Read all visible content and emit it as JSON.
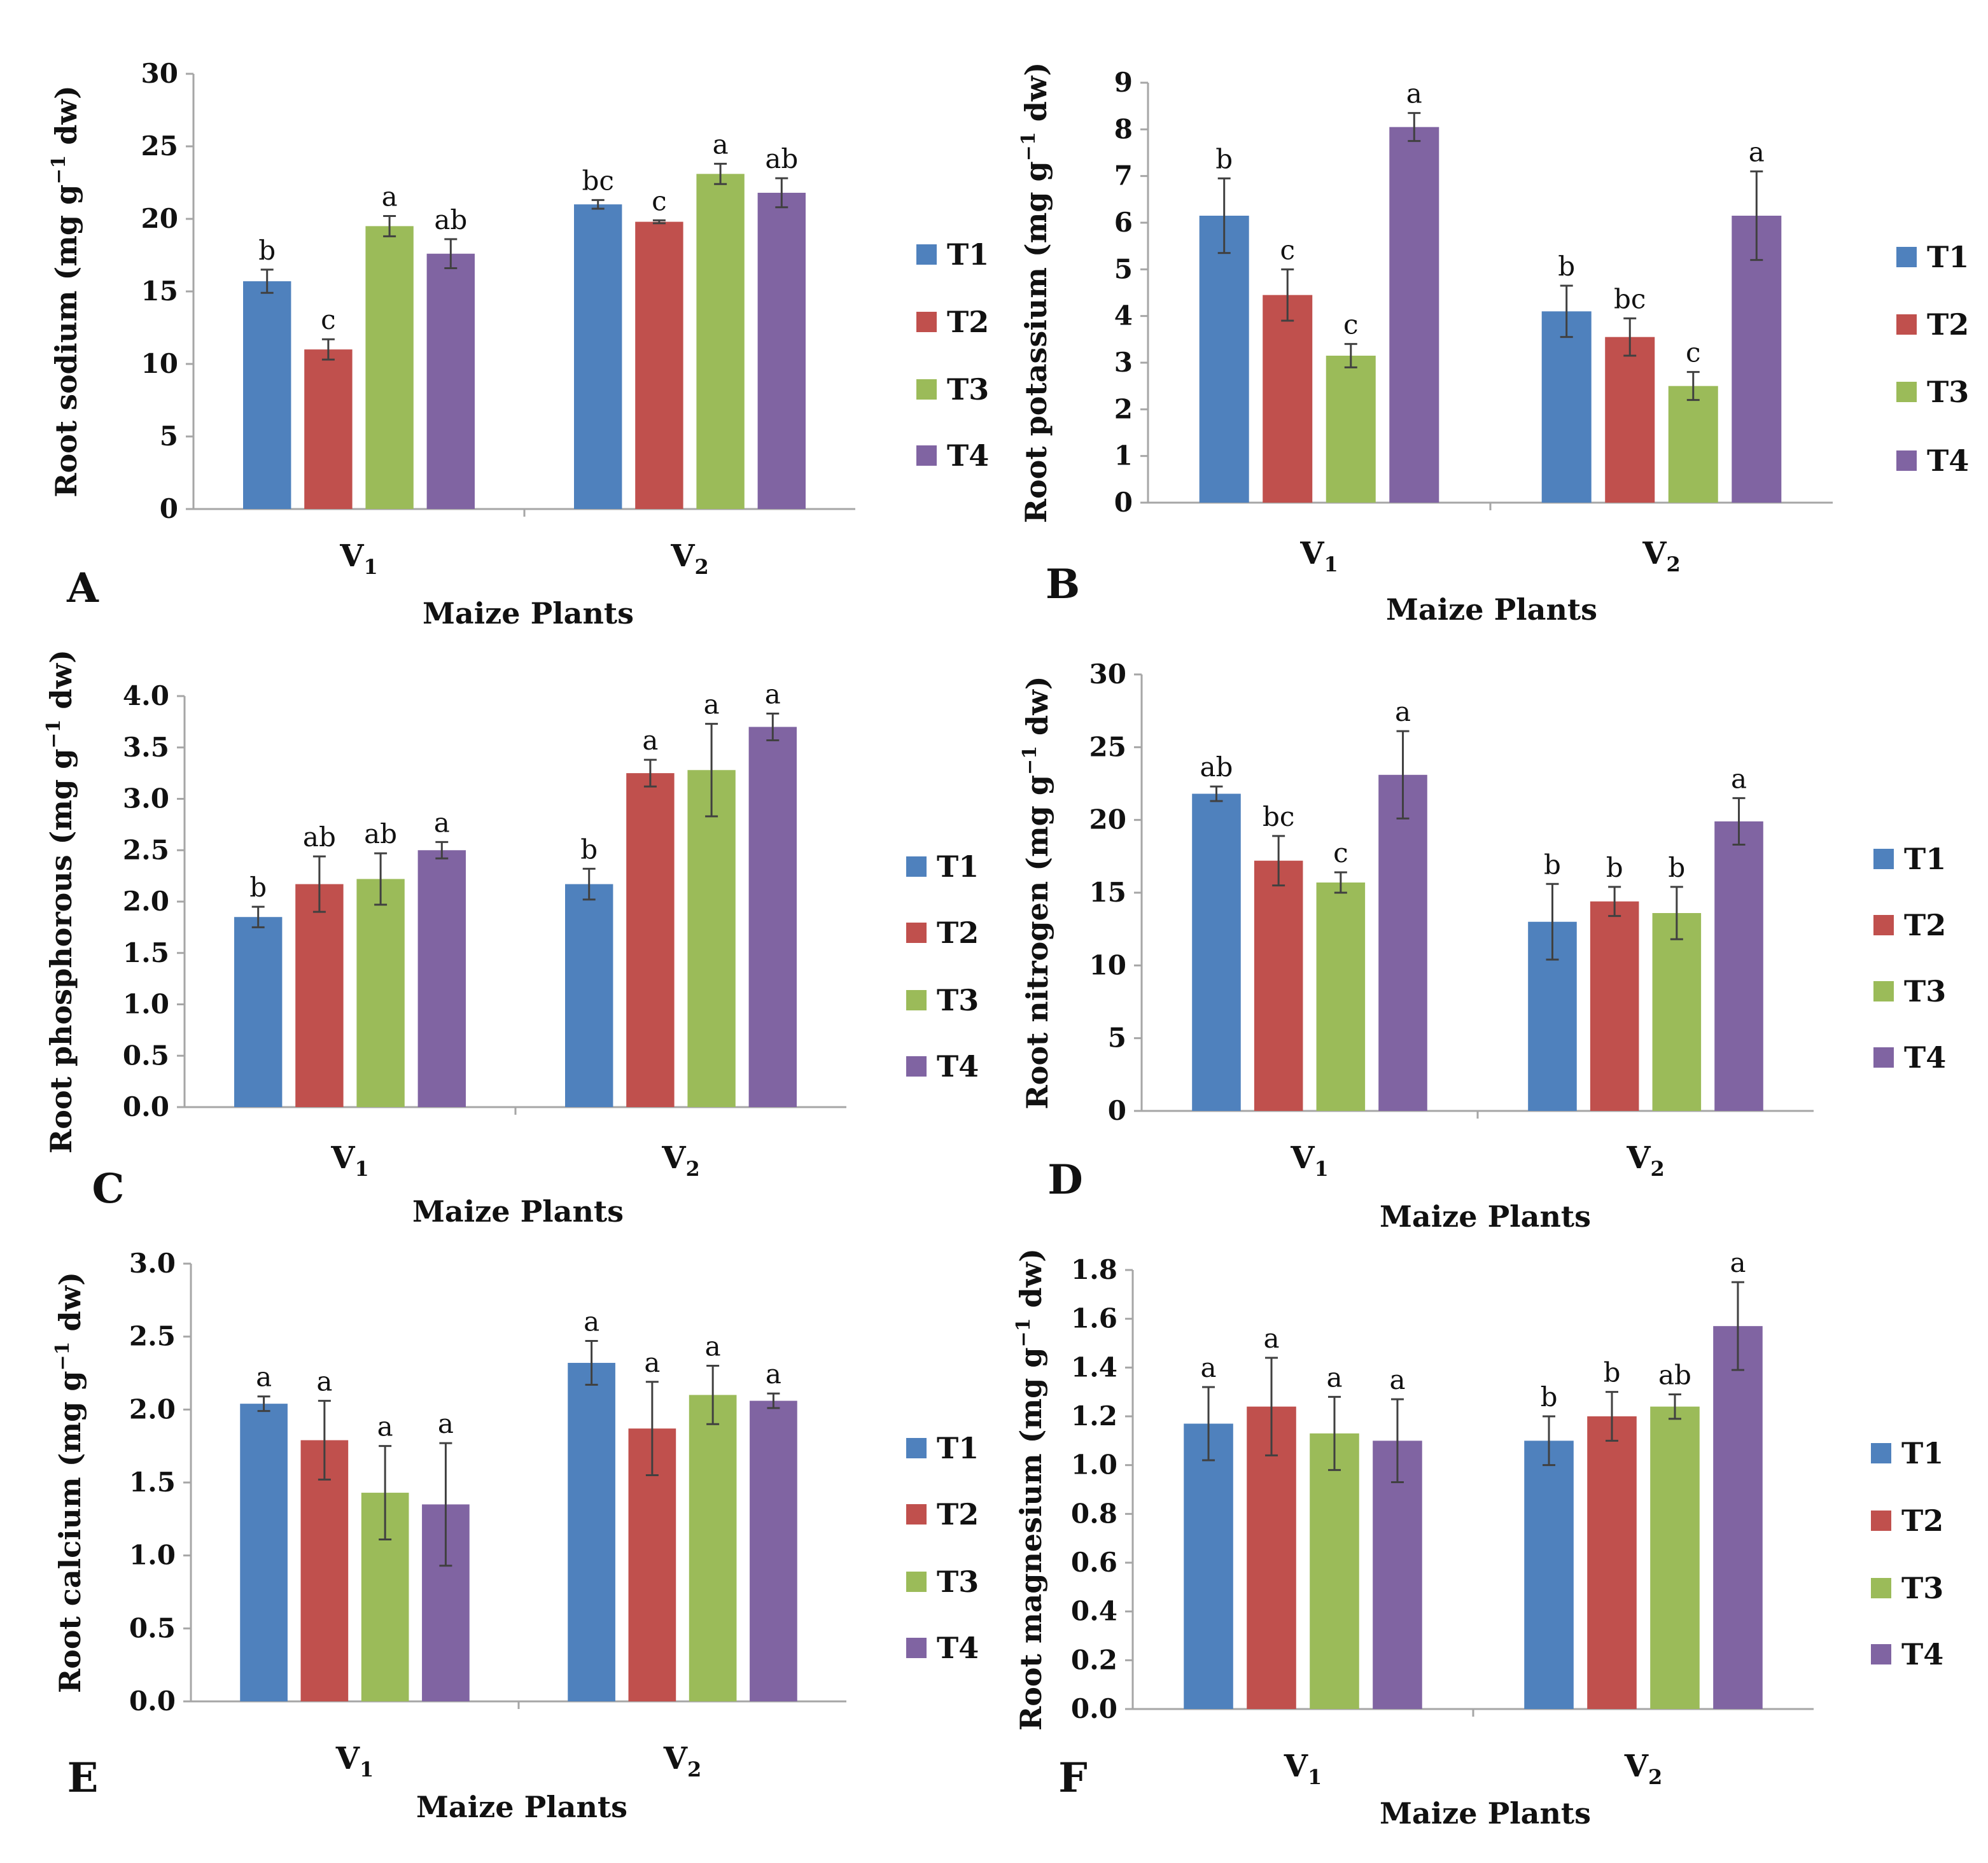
{
  "colors": {
    "T1": "#4F81BD",
    "T2": "#C0504D",
    "T3": "#9BBB59",
    "T4": "#8064A2",
    "axis": "#A6A6A6",
    "error": "#404040"
  },
  "chart_data": [
    {
      "panel": "A",
      "type": "bar",
      "ylabel_prefix": "Root sodium (mg g",
      "ylabel_sup": "−1",
      "ylabel_suffix": " dw)",
      "xlabel": "Maize Plants",
      "categories": [
        "V1",
        "V2"
      ],
      "ylim": [
        0,
        30
      ],
      "yticks": [
        "0",
        "5",
        "10",
        "15",
        "20",
        "25",
        "30"
      ],
      "legend": [
        "T1",
        "T2",
        "T3",
        "T4"
      ],
      "legend_position": "right",
      "series": [
        {
          "name": "T1",
          "values": [
            15.7,
            21.0
          ],
          "errors": [
            0.8,
            0.3
          ],
          "letters": [
            "b",
            "bc"
          ]
        },
        {
          "name": "T2",
          "values": [
            11.0,
            19.8
          ],
          "errors": [
            0.7,
            0.1
          ],
          "letters": [
            "c",
            "c"
          ]
        },
        {
          "name": "T3",
          "values": [
            19.5,
            23.1
          ],
          "errors": [
            0.7,
            0.7
          ],
          "letters": [
            "a",
            "a"
          ]
        },
        {
          "name": "T4",
          "values": [
            17.6,
            21.8
          ],
          "errors": [
            1.0,
            1.0
          ],
          "letters": [
            "ab",
            "ab"
          ]
        }
      ]
    },
    {
      "panel": "B",
      "type": "bar",
      "ylabel_prefix": "Root potassium (mg g",
      "ylabel_sup": "−1",
      "ylabel_suffix": " dw)",
      "xlabel": "Maize Plants",
      "categories": [
        "V1",
        "V2"
      ],
      "ylim": [
        0,
        9
      ],
      "yticks": [
        "0",
        "1",
        "2",
        "3",
        "4",
        "5",
        "6",
        "7",
        "8",
        "9"
      ],
      "legend": [
        "T1",
        "T2",
        "T3",
        "T4"
      ],
      "legend_position": "right",
      "series": [
        {
          "name": "T1",
          "values": [
            6.15,
            4.1
          ],
          "errors": [
            0.8,
            0.55
          ],
          "letters": [
            "b",
            "b"
          ]
        },
        {
          "name": "T2",
          "values": [
            4.45,
            3.55
          ],
          "errors": [
            0.55,
            0.4
          ],
          "letters": [
            "c",
            "bc"
          ]
        },
        {
          "name": "T3",
          "values": [
            3.15,
            2.5
          ],
          "errors": [
            0.25,
            0.3
          ],
          "letters": [
            "c",
            "c"
          ]
        },
        {
          "name": "T4",
          "values": [
            8.05,
            6.15
          ],
          "errors": [
            0.3,
            0.95
          ],
          "letters": [
            "a",
            "a"
          ]
        }
      ]
    },
    {
      "panel": "C",
      "type": "bar",
      "ylabel_prefix": "Root phosphorous (mg g",
      "ylabel_sup": "−1",
      "ylabel_suffix": " dw)",
      "xlabel": "Maize Plants",
      "categories": [
        "V1",
        "V2"
      ],
      "ylim": [
        0,
        4
      ],
      "yticks": [
        "0.0",
        "0.5",
        "1.0",
        "1.5",
        "2.0",
        "2.5",
        "3.0",
        "3.5",
        "4.0"
      ],
      "legend": [
        "T1",
        "T2",
        "T3",
        "T4"
      ],
      "legend_position": "right",
      "series": [
        {
          "name": "T1",
          "values": [
            1.85,
            2.17
          ],
          "errors": [
            0.1,
            0.15
          ],
          "letters": [
            "b",
            "b"
          ]
        },
        {
          "name": "T2",
          "values": [
            2.17,
            3.25
          ],
          "errors": [
            0.27,
            0.13
          ],
          "letters": [
            "ab",
            "a"
          ]
        },
        {
          "name": "T3",
          "values": [
            2.22,
            3.28
          ],
          "errors": [
            0.25,
            0.45
          ],
          "letters": [
            "ab",
            "a"
          ]
        },
        {
          "name": "T4",
          "values": [
            2.5,
            3.7
          ],
          "errors": [
            0.08,
            0.13
          ],
          "letters": [
            "a",
            "a"
          ]
        }
      ]
    },
    {
      "panel": "D",
      "type": "bar",
      "ylabel_prefix": "Root nitrogen (mg g",
      "ylabel_sup": "−1",
      "ylabel_suffix": " dw)",
      "xlabel": "Maize Plants",
      "categories": [
        "V1",
        "V2"
      ],
      "ylim": [
        0,
        30
      ],
      "yticks": [
        "0",
        "5",
        "10",
        "15",
        "20",
        "25",
        "30"
      ],
      "legend": [
        "T1",
        "T2",
        "T3",
        "T4"
      ],
      "legend_position": "right",
      "series": [
        {
          "name": "T1",
          "values": [
            21.8,
            13.0
          ],
          "errors": [
            0.5,
            2.6
          ],
          "letters": [
            "ab",
            "b"
          ]
        },
        {
          "name": "T2",
          "values": [
            17.2,
            14.4
          ],
          "errors": [
            1.7,
            1.0
          ],
          "letters": [
            "bc",
            "b"
          ]
        },
        {
          "name": "T3",
          "values": [
            15.7,
            13.6
          ],
          "errors": [
            0.7,
            1.8
          ],
          "letters": [
            "c",
            "b"
          ]
        },
        {
          "name": "T4",
          "values": [
            23.1,
            19.9
          ],
          "errors": [
            3.0,
            1.6
          ],
          "letters": [
            "a",
            "a"
          ]
        }
      ]
    },
    {
      "panel": "E",
      "type": "bar",
      "ylabel_prefix": "Root calcium (mg g",
      "ylabel_sup": "−1",
      "ylabel_suffix": " dw)",
      "xlabel": "Maize Plants",
      "categories": [
        "V1",
        "V2"
      ],
      "ylim": [
        0,
        3
      ],
      "yticks": [
        "0.0",
        "0.5",
        "1.0",
        "1.5",
        "2.0",
        "2.5",
        "3.0"
      ],
      "legend": [
        "T1",
        "T2",
        "T3",
        "T4"
      ],
      "legend_position": "right",
      "series": [
        {
          "name": "T1",
          "values": [
            2.04,
            2.32
          ],
          "errors": [
            0.05,
            0.15
          ],
          "letters": [
            "a",
            "a"
          ]
        },
        {
          "name": "T2",
          "values": [
            1.79,
            1.87
          ],
          "errors": [
            0.27,
            0.32
          ],
          "letters": [
            "a",
            "a"
          ]
        },
        {
          "name": "T3",
          "values": [
            1.43,
            2.1
          ],
          "errors": [
            0.32,
            0.2
          ],
          "letters": [
            "a",
            "a"
          ]
        },
        {
          "name": "T4",
          "values": [
            1.35,
            2.06
          ],
          "errors": [
            0.42,
            0.05
          ],
          "letters": [
            "a",
            "a"
          ]
        }
      ]
    },
    {
      "panel": "F",
      "type": "bar",
      "ylabel_prefix": "Root magnesium (mg g",
      "ylabel_sup": "−1",
      "ylabel_suffix": " dw)",
      "xlabel": "Maize Plants",
      "categories": [
        "V1",
        "V2"
      ],
      "ylim": [
        0,
        1.8
      ],
      "yticks": [
        "0.0",
        "0.2",
        "0.4",
        "0.6",
        "0.8",
        "1.0",
        "1.2",
        "1.4",
        "1.6",
        "1.8"
      ],
      "legend": [
        "T1",
        "T2",
        "T3",
        "T4"
      ],
      "legend_position": "right",
      "series": [
        {
          "name": "T1",
          "values": [
            1.17,
            1.1
          ],
          "errors": [
            0.15,
            0.1
          ],
          "letters": [
            "a",
            "b"
          ]
        },
        {
          "name": "T2",
          "values": [
            1.24,
            1.2
          ],
          "errors": [
            0.2,
            0.1
          ],
          "letters": [
            "a",
            "b"
          ]
        },
        {
          "name": "T3",
          "values": [
            1.13,
            1.24
          ],
          "errors": [
            0.15,
            0.05
          ],
          "letters": [
            "a",
            "ab"
          ]
        },
        {
          "name": "T4",
          "values": [
            1.1,
            1.57
          ],
          "errors": [
            0.17,
            0.18
          ],
          "letters": [
            "a",
            "a"
          ]
        }
      ]
    }
  ]
}
